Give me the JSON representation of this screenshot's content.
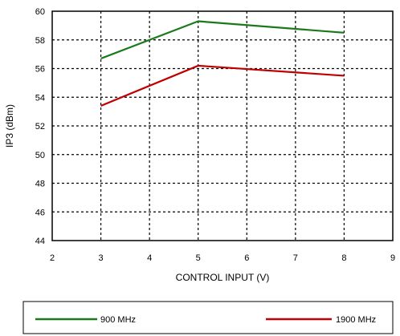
{
  "chart_data": {
    "type": "line",
    "xlabel": "CONTROL INPUT (V)",
    "ylabel": "IP3 (dBm)",
    "xlim": [
      2,
      9
    ],
    "ylim": [
      44,
      60
    ],
    "xticks": [
      2,
      3,
      4,
      5,
      6,
      7,
      8,
      9
    ],
    "yticks": [
      44,
      46,
      48,
      50,
      52,
      54,
      56,
      58,
      60
    ],
    "grid": true,
    "legend_position": "bottom",
    "series": [
      {
        "name": "900 MHz",
        "color": "#1a7a1a",
        "x": [
          3,
          5,
          8
        ],
        "y": [
          56.7,
          59.3,
          58.5
        ]
      },
      {
        "name": "1900 MHz",
        "color": "#c00000",
        "x": [
          3,
          5,
          8
        ],
        "y": [
          53.4,
          56.2,
          55.5
        ]
      }
    ]
  }
}
